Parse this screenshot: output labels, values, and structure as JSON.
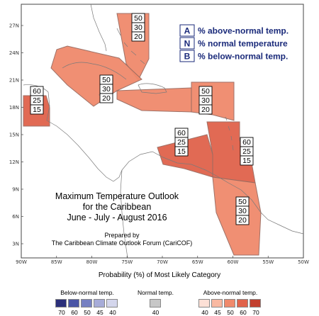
{
  "map": {
    "lat_labels": [
      "27N",
      "24N",
      "21N",
      "18N",
      "15N",
      "12N",
      "9N",
      "6N",
      "3N"
    ],
    "lon_labels": [
      "90W",
      "85W",
      "80W",
      "75W",
      "70W",
      "65W",
      "60W",
      "55W",
      "50W"
    ],
    "title_lines": [
      "Maximum Temperature Outlook",
      "for the Caribbean",
      "June - July - August 2016"
    ],
    "prepared_lines": [
      "Prepared by",
      "The Caribbean Climate Outlook Forum (CariCOF)"
    ],
    "legend_key": [
      {
        "letter": "A",
        "desc": "% above-normal temp."
      },
      {
        "letter": "N",
        "desc": "% normal temperature"
      },
      {
        "letter": "B",
        "desc": "% below-normal temp."
      }
    ],
    "regions": [
      {
        "name": "bahamas",
        "values": [
          "50",
          "30",
          "20"
        ],
        "category": "above",
        "probability": 50
      },
      {
        "name": "greater-antilles",
        "values": [
          "50",
          "30",
          "20"
        ],
        "category": "above",
        "probability": 50
      },
      {
        "name": "belize-yucatan",
        "values": [
          "60",
          "25",
          "15"
        ],
        "category": "above",
        "probability": 60
      },
      {
        "name": "leeward-islands",
        "values": [
          "50",
          "30",
          "20"
        ],
        "category": "above",
        "probability": 50
      },
      {
        "name": "colombia-venezuela",
        "values": [
          "60",
          "25",
          "15"
        ],
        "category": "above",
        "probability": 60
      },
      {
        "name": "windward-islands",
        "values": [
          "60",
          "25",
          "15"
        ],
        "category": "above",
        "probability": 60
      },
      {
        "name": "guianas",
        "values": [
          "50",
          "30",
          "20"
        ],
        "category": "above",
        "probability": 50
      }
    ]
  },
  "colorbar": {
    "title": "Probability (%) of Most Likely Category",
    "groups": [
      {
        "name": "Below-normal temp.",
        "colors": [
          "#2b2f7a",
          "#4a55a6",
          "#7680c2",
          "#a7acd8",
          "#d4d6ec"
        ],
        "ticks": [
          "70",
          "60",
          "50",
          "45",
          "40"
        ]
      },
      {
        "name": "Normal temp.",
        "colors": [
          "#c7c7c7"
        ],
        "ticks": [
          "40"
        ]
      },
      {
        "name": "Above-normal temp.",
        "colors": [
          "#fde0d6",
          "#f9b9a2",
          "#f08a6c",
          "#e0634b",
          "#c2402f"
        ],
        "ticks": [
          "40",
          "45",
          "50",
          "60",
          "70"
        ]
      }
    ]
  }
}
